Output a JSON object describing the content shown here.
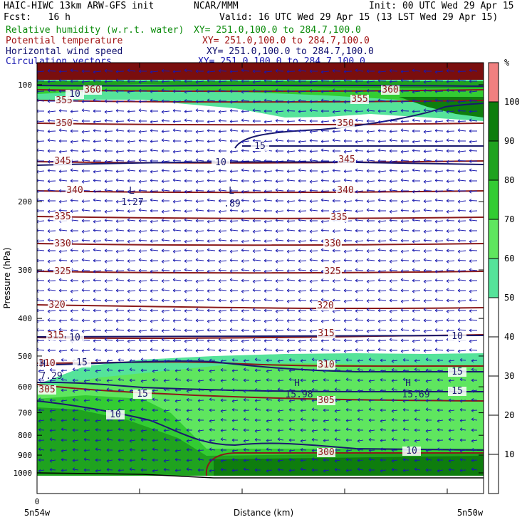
{
  "header": {
    "model": "HAIC-HIWC 13km ARW-GFS init",
    "center": "NCAR/MMM",
    "init": "Init: 00 UTC Wed 29 Apr 15",
    "fcst": "Fcst:   16 h",
    "valid": "Valid: 16 UTC Wed 29 Apr 15 (13 LST Wed 29 Apr 15)",
    "fields": [
      {
        "label": "Relative humidity (w.r.t. water)",
        "xy": "XY= 251.0,100.0 to 284.7,100.0",
        "color": "#0a8a0a"
      },
      {
        "label": "Potential temperature",
        "xy": "XY= 251.0,100.0 to 284.7,100.0",
        "color": "#a01010"
      },
      {
        "label": "Horizontal wind speed",
        "xy": "XY= 251.0,100.0 to 284.7,100.0",
        "color": "#10106e"
      },
      {
        "label": "Circulation vectors",
        "xy": "XY= 251.0,100.0 to 284.7,100.0",
        "color": "#1818b0"
      }
    ]
  },
  "chart_data": {
    "type": "cross-section",
    "ylabel": "Pressure (hPa)",
    "xlabel": "Distance (km)",
    "y_log_scale": true,
    "ylim": [
      1050,
      85
    ],
    "yticks": [
      100,
      200,
      300,
      400,
      500,
      600,
      700,
      800,
      900,
      1000
    ],
    "x_origin_label": "0",
    "x_left_label": "5n54w",
    "x_right_label": "5n50w",
    "colorbar": {
      "unit": "%",
      "levels": [
        10,
        20,
        30,
        40,
        50,
        60,
        70,
        80,
        90,
        100
      ],
      "colors": [
        "#ffffff",
        "#ffffff",
        "#ffffff",
        "#ffffff",
        "#ffffff",
        "#55e39a",
        "#5fe65f",
        "#33cc33",
        "#1fa31f",
        "#0e7d0e",
        "#f08080"
      ]
    },
    "theta_labels": [
      "360",
      "355",
      "350",
      "345",
      "340",
      "335",
      "330",
      "325",
      "320",
      "315",
      "310",
      "305",
      "300"
    ],
    "wind_labels": [
      "10",
      "15"
    ],
    "extrema": [
      {
        "type": "L",
        "value": "1.27"
      },
      {
        "type": "L",
        "value": ".89"
      },
      {
        "type": "H",
        "value": "7.29"
      },
      {
        "type": "H",
        "value": "15.98"
      },
      {
        "type": "H",
        "value": "15.69"
      }
    ]
  }
}
